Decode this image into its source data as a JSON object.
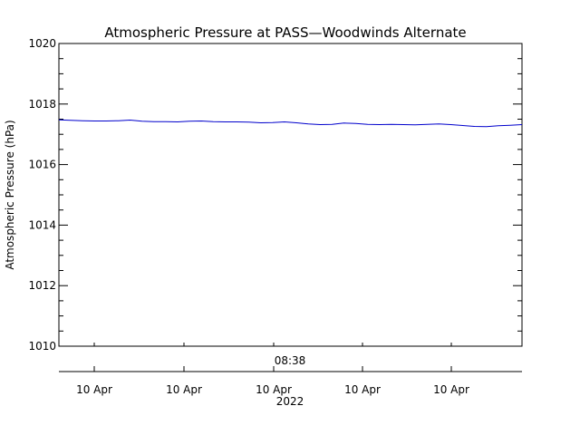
{
  "chart_data": {
    "type": "line",
    "title": "Atmospheric Pressure at PASS—Woodwinds Alternate",
    "xlabel": "",
    "ylabel": "Atmospheric Pressure (hPa)",
    "ylim": [
      1010,
      1020
    ],
    "y_ticks": [
      "1010",
      "1012",
      "1014",
      "1016",
      "1018",
      "1020"
    ],
    "x_top_label": "08:38",
    "x_tick_labels": [
      "10 Apr",
      "10 Apr",
      "10 Apr",
      "10 Apr",
      "10 Apr"
    ],
    "x_year_label": "2022",
    "grid": false,
    "line_color": "#0000cc",
    "series": [
      {
        "values": [
          1017.48,
          1017.46,
          1017.45,
          1017.44,
          1017.44,
          1017.45,
          1017.47,
          1017.43,
          1017.42,
          1017.42,
          1017.41,
          1017.43,
          1017.44,
          1017.42,
          1017.41,
          1017.41,
          1017.4,
          1017.38,
          1017.39,
          1017.41,
          1017.38,
          1017.34,
          1017.32,
          1017.33,
          1017.37,
          1017.36,
          1017.33,
          1017.32,
          1017.33,
          1017.32,
          1017.31,
          1017.33,
          1017.34,
          1017.32,
          1017.29,
          1017.26,
          1017.25,
          1017.28,
          1017.3,
          1017.32
        ]
      }
    ]
  }
}
